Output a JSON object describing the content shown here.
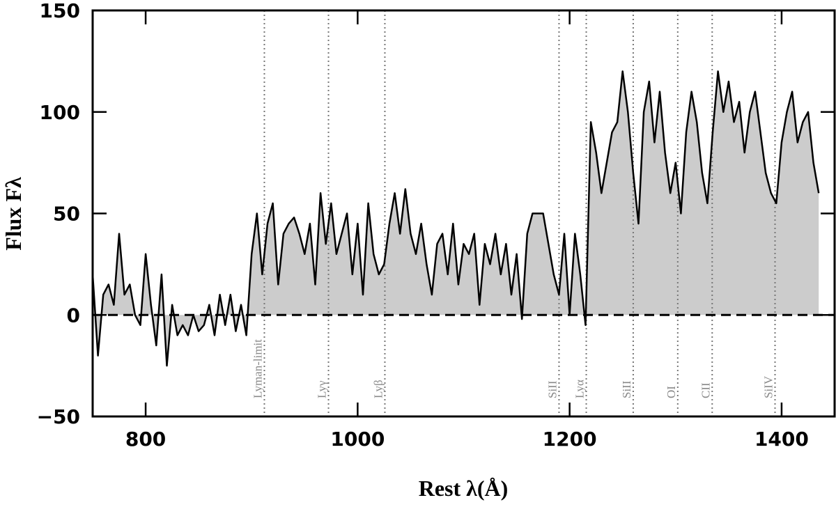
{
  "chart_data": {
    "type": "line",
    "x_label": "Rest λ(Å)",
    "y_label": "Flux Fλ",
    "xlim": [
      750,
      1450
    ],
    "ylim": [
      -50,
      150
    ],
    "xticks": [
      800,
      1000,
      1200,
      1400
    ],
    "yticks": [
      {
        "value": -50,
        "label": "−50"
      },
      0,
      50,
      100,
      150
    ],
    "color": "#000000",
    "fill_color": "#cccccc",
    "zero_line": 0,
    "x": [
      750,
      755,
      760,
      765,
      770,
      775,
      780,
      785,
      790,
      795,
      800,
      805,
      810,
      815,
      820,
      825,
      830,
      835,
      840,
      845,
      850,
      855,
      860,
      865,
      870,
      875,
      880,
      885,
      890,
      895,
      900,
      905,
      910,
      915,
      920,
      925,
      930,
      935,
      940,
      945,
      950,
      955,
      960,
      965,
      970,
      975,
      980,
      985,
      990,
      995,
      1000,
      1005,
      1010,
      1015,
      1020,
      1025,
      1030,
      1035,
      1040,
      1045,
      1050,
      1055,
      1060,
      1065,
      1070,
      1075,
      1080,
      1085,
      1090,
      1095,
      1100,
      1105,
      1110,
      1115,
      1120,
      1125,
      1130,
      1135,
      1140,
      1145,
      1150,
      1155,
      1160,
      1165,
      1170,
      1175,
      1180,
      1185,
      1190,
      1195,
      1200,
      1205,
      1210,
      1215,
      1220,
      1225,
      1230,
      1235,
      1240,
      1245,
      1250,
      1255,
      1260,
      1265,
      1270,
      1275,
      1280,
      1285,
      1290,
      1295,
      1300,
      1305,
      1310,
      1315,
      1320,
      1325,
      1330,
      1335,
      1340,
      1345,
      1350,
      1355,
      1360,
      1365,
      1370,
      1375,
      1380,
      1385,
      1390,
      1395,
      1400,
      1405,
      1410,
      1415,
      1420,
      1425,
      1430,
      1435
    ],
    "values": [
      20,
      -20,
      10,
      15,
      5,
      40,
      10,
      15,
      0,
      -5,
      30,
      5,
      -15,
      20,
      -25,
      5,
      -10,
      -5,
      -10,
      0,
      -8,
      -5,
      5,
      -10,
      10,
      -5,
      10,
      -8,
      5,
      -10,
      30,
      50,
      20,
      45,
      55,
      15,
      40,
      45,
      48,
      40,
      30,
      45,
      15,
      60,
      35,
      55,
      30,
      40,
      50,
      20,
      45,
      10,
      55,
      30,
      20,
      25,
      45,
      60,
      40,
      62,
      40,
      30,
      45,
      25,
      10,
      35,
      40,
      20,
      45,
      15,
      35,
      30,
      40,
      5,
      35,
      25,
      40,
      20,
      35,
      10,
      30,
      -2,
      40,
      50,
      50,
      50,
      35,
      20,
      10,
      40,
      0,
      40,
      20,
      -5,
      95,
      80,
      60,
      75,
      90,
      95,
      120,
      100,
      70,
      45,
      100,
      115,
      85,
      110,
      80,
      60,
      75,
      50,
      90,
      110,
      95,
      70,
      55,
      90,
      120,
      100,
      115,
      95,
      105,
      80,
      100,
      110,
      90,
      70,
      60,
      55,
      85,
      100,
      110,
      85,
      95,
      100,
      75,
      60
    ],
    "lines": [
      {
        "x": 912,
        "label": "Lyman-limit"
      },
      {
        "x": 972.5,
        "label": "Lyγ"
      },
      {
        "x": 1025.7,
        "label": "Lyβ"
      },
      {
        "x": 1190,
        "label": "SiII"
      },
      {
        "x": 1215.7,
        "label": "Lyα"
      },
      {
        "x": 1260,
        "label": "SiII"
      },
      {
        "x": 1302,
        "label": "OI"
      },
      {
        "x": 1334.5,
        "label": "CII"
      },
      {
        "x": 1393.8,
        "label": "SiIV"
      }
    ]
  }
}
